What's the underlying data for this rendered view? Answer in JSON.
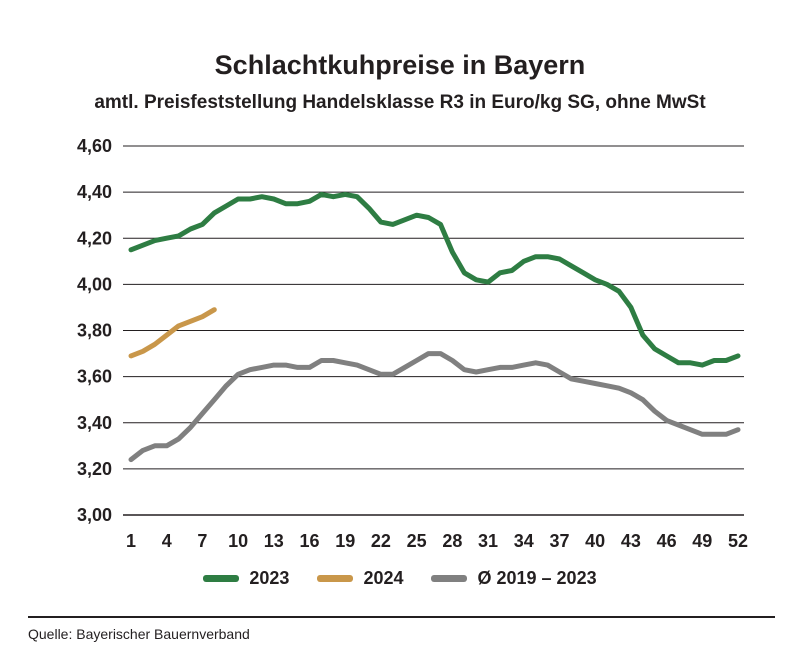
{
  "chart_data": {
    "type": "line",
    "title": "Schlachtkuhpreise in Bayern",
    "subtitle": "amtl. Preisfeststellung Handelsklasse R3 in Euro/kg SG, ohne MwSt",
    "x_tick_labels": [
      "1",
      "4",
      "7",
      "10",
      "13",
      "16",
      "19",
      "22",
      "25",
      "28",
      "31",
      "34",
      "37",
      "40",
      "43",
      "46",
      "49",
      "52"
    ],
    "y_tick_labels": [
      "3,00",
      "3,20",
      "3,40",
      "3,60",
      "3,80",
      "4,00",
      "4,20",
      "4,40",
      "4,60"
    ],
    "xlim": [
      1,
      52
    ],
    "ylim": [
      3.0,
      4.6
    ],
    "grid": true,
    "legend_position": "bottom",
    "series": [
      {
        "name": "2023",
        "color": "#2e7d43",
        "x": [
          1,
          2,
          3,
          4,
          5,
          6,
          7,
          8,
          9,
          10,
          11,
          12,
          13,
          14,
          15,
          16,
          17,
          18,
          19,
          20,
          21,
          22,
          23,
          24,
          25,
          26,
          27,
          28,
          29,
          30,
          31,
          32,
          33,
          34,
          35,
          36,
          37,
          38,
          39,
          40,
          41,
          42,
          43,
          44,
          45,
          46,
          47,
          48,
          49,
          50,
          51,
          52
        ],
        "values": [
          4.15,
          4.17,
          4.19,
          4.2,
          4.21,
          4.24,
          4.26,
          4.31,
          4.34,
          4.37,
          4.37,
          4.38,
          4.37,
          4.35,
          4.35,
          4.36,
          4.39,
          4.38,
          4.39,
          4.38,
          4.33,
          4.27,
          4.26,
          4.28,
          4.3,
          4.29,
          4.26,
          4.14,
          4.05,
          4.02,
          4.01,
          4.05,
          4.06,
          4.1,
          4.12,
          4.12,
          4.11,
          4.08,
          4.05,
          4.02,
          4.0,
          3.97,
          3.9,
          3.78,
          3.72,
          3.69,
          3.66,
          3.66,
          3.65,
          3.67,
          3.67,
          3.69
        ]
      },
      {
        "name": "2024",
        "color": "#c9974a",
        "x": [
          1,
          2,
          3,
          4,
          5,
          6,
          7,
          8
        ],
        "values": [
          3.69,
          3.71,
          3.74,
          3.78,
          3.82,
          3.84,
          3.86,
          3.89
        ]
      },
      {
        "name": "Ø 2019 – 2023",
        "color": "#808080",
        "x": [
          1,
          2,
          3,
          4,
          5,
          6,
          7,
          8,
          9,
          10,
          11,
          12,
          13,
          14,
          15,
          16,
          17,
          18,
          19,
          20,
          21,
          22,
          23,
          24,
          25,
          26,
          27,
          28,
          29,
          30,
          31,
          32,
          33,
          34,
          35,
          36,
          37,
          38,
          39,
          40,
          41,
          42,
          43,
          44,
          45,
          46,
          47,
          48,
          49,
          50,
          51,
          52
        ],
        "values": [
          3.24,
          3.28,
          3.3,
          3.3,
          3.33,
          3.38,
          3.44,
          3.5,
          3.56,
          3.61,
          3.63,
          3.64,
          3.65,
          3.65,
          3.64,
          3.64,
          3.67,
          3.67,
          3.66,
          3.65,
          3.63,
          3.61,
          3.61,
          3.64,
          3.67,
          3.7,
          3.7,
          3.67,
          3.63,
          3.62,
          3.63,
          3.64,
          3.64,
          3.65,
          3.66,
          3.65,
          3.62,
          3.59,
          3.58,
          3.57,
          3.56,
          3.55,
          3.53,
          3.5,
          3.45,
          3.41,
          3.39,
          3.37,
          3.35,
          3.35,
          3.35,
          3.37
        ]
      }
    ]
  },
  "source": "Quelle: Bayerischer Bauernverband"
}
